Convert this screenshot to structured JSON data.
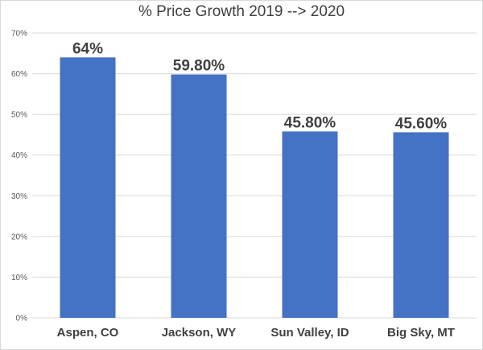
{
  "chart_data": {
    "type": "bar",
    "title": "% Price Growth 2019 --> 2020",
    "xlabel": "",
    "ylabel": "",
    "categories": [
      "Aspen, CO",
      "Jackson, WY",
      "Sun Valley, ID",
      "Big Sky, MT"
    ],
    "values": [
      64,
      59.8,
      45.8,
      45.6
    ],
    "data_labels": [
      "64%",
      "59.80%",
      "45.80%",
      "45.60%"
    ],
    "ylim": [
      0,
      70
    ],
    "yticks": [
      0,
      10,
      20,
      30,
      40,
      50,
      60,
      70
    ],
    "ytick_labels": [
      "0%",
      "10%",
      "20%",
      "30%",
      "40%",
      "50%",
      "60%",
      "70%"
    ],
    "grid": true,
    "legend": "none",
    "bar_color": "#4472C4",
    "grid_color": "#d9d9d9"
  }
}
